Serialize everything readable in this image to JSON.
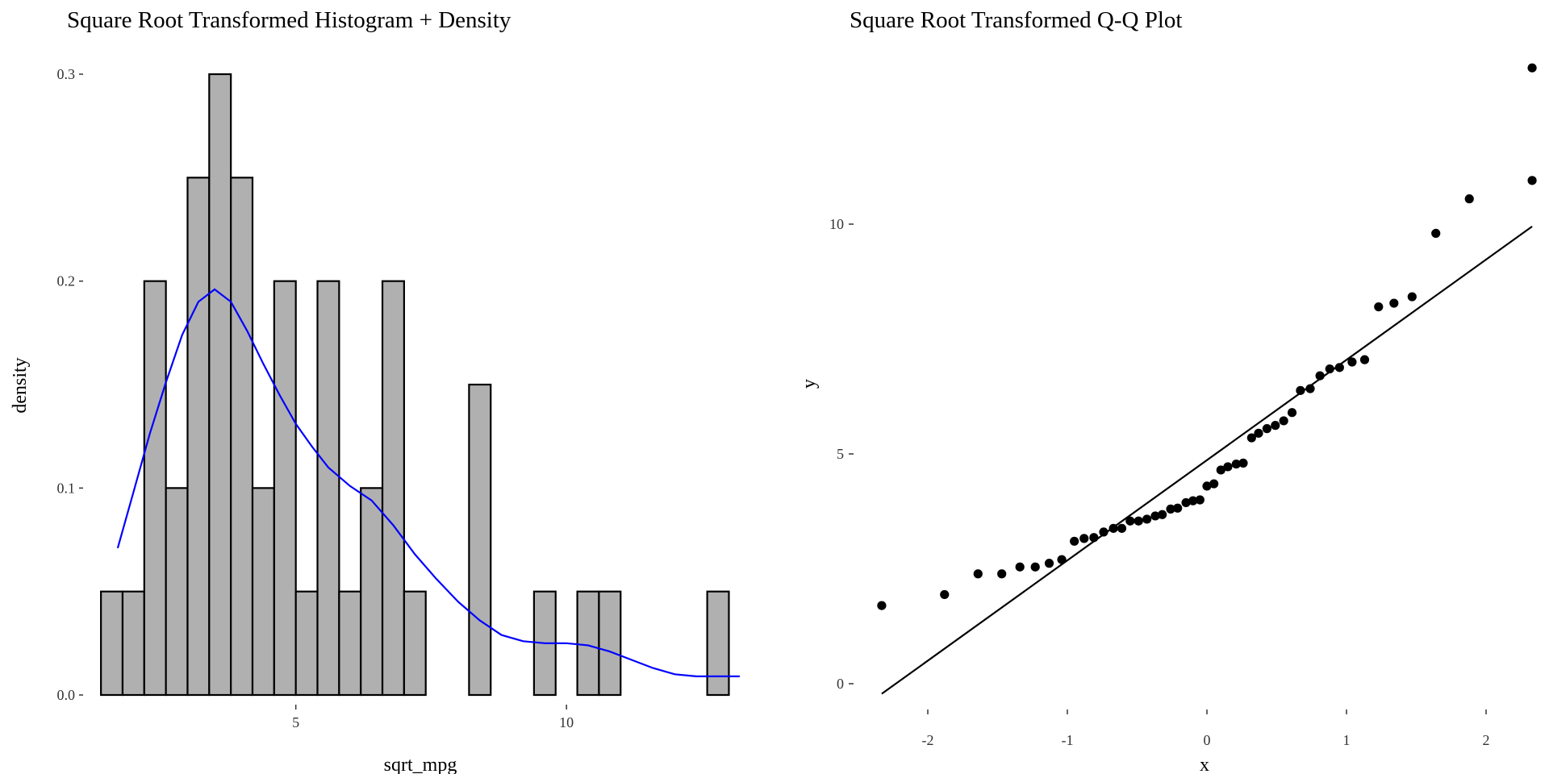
{
  "chart_data": [
    {
      "type": "histogram",
      "title": "Square Root Transformed Histogram + Density",
      "xlabel": "sqrt_mpg",
      "ylabel": "density",
      "xlim": [
        1.1,
        13.5
      ],
      "ylim": [
        0,
        0.3
      ],
      "x_ticks": [
        5,
        10
      ],
      "y_ticks": [
        0.0,
        0.1,
        0.2,
        0.3
      ],
      "x_tick_labels": [
        "5",
        "10"
      ],
      "y_tick_labels": [
        "0.0",
        "0.1",
        "0.2",
        "0.3"
      ],
      "bin_width": 0.4,
      "bins": [
        {
          "start": 1.4,
          "density": 0.05
        },
        {
          "start": 1.8,
          "density": 0.05
        },
        {
          "start": 2.2,
          "density": 0.2
        },
        {
          "start": 2.6,
          "density": 0.1
        },
        {
          "start": 3.0,
          "density": 0.25
        },
        {
          "start": 3.4,
          "density": 0.3
        },
        {
          "start": 3.8,
          "density": 0.25
        },
        {
          "start": 4.2,
          "density": 0.1
        },
        {
          "start": 4.6,
          "density": 0.2
        },
        {
          "start": 5.0,
          "density": 0.05
        },
        {
          "start": 5.4,
          "density": 0.2
        },
        {
          "start": 5.8,
          "density": 0.05
        },
        {
          "start": 6.2,
          "density": 0.1
        },
        {
          "start": 6.6,
          "density": 0.2
        },
        {
          "start": 7.0,
          "density": 0.05
        },
        {
          "start": 7.4,
          "density": 0.0
        },
        {
          "start": 7.8,
          "density": 0.0
        },
        {
          "start": 8.2,
          "density": 0.15
        },
        {
          "start": 8.6,
          "density": 0.0
        },
        {
          "start": 9.0,
          "density": 0.0
        },
        {
          "start": 9.4,
          "density": 0.05
        },
        {
          "start": 9.8,
          "density": 0.0
        },
        {
          "start": 10.2,
          "density": 0.05
        },
        {
          "start": 10.6,
          "density": 0.05
        },
        {
          "start": 11.0,
          "density": 0.0
        },
        {
          "start": 11.4,
          "density": 0.0
        },
        {
          "start": 11.8,
          "density": 0.0
        },
        {
          "start": 12.2,
          "density": 0.0
        },
        {
          "start": 12.6,
          "density": 0.05
        }
      ],
      "density_curve": {
        "color": "#0000ff",
        "x": [
          1.71,
          2.0,
          2.3,
          2.6,
          2.9,
          3.2,
          3.5,
          3.8,
          4.1,
          4.4,
          4.7,
          5.0,
          5.3,
          5.6,
          6.0,
          6.4,
          6.8,
          7.2,
          7.6,
          8.0,
          8.4,
          8.8,
          9.2,
          9.6,
          10.0,
          10.4,
          10.8,
          11.2,
          11.6,
          12.0,
          12.4,
          12.8,
          13.2
        ],
        "y": [
          0.071,
          0.098,
          0.126,
          0.151,
          0.174,
          0.19,
          0.196,
          0.19,
          0.176,
          0.16,
          0.145,
          0.131,
          0.12,
          0.11,
          0.101,
          0.094,
          0.082,
          0.068,
          0.056,
          0.045,
          0.036,
          0.029,
          0.026,
          0.025,
          0.025,
          0.024,
          0.021,
          0.017,
          0.013,
          0.01,
          0.009,
          0.009,
          0.009
        ]
      },
      "bar_fill": "#b0b0b0",
      "bar_stroke": "#000000"
    },
    {
      "type": "scatter",
      "title": "Square Root Transformed Q-Q Plot",
      "xlabel": "x",
      "ylabel": "y",
      "xlim": [
        -2.45,
        2.45
      ],
      "ylim": [
        -0.25,
        13.6
      ],
      "x_ticks": [
        -2,
        -1,
        0,
        1,
        2
      ],
      "y_ticks": [
        0,
        5,
        10
      ],
      "x_tick_labels": [
        "-2",
        "-1",
        "0",
        "1",
        "2"
      ],
      "y_tick_labels": [
        "0",
        "5",
        "10"
      ],
      "reference_line": {
        "x": [
          -2.33,
          2.33
        ],
        "y": [
          -0.22,
          9.95
        ]
      },
      "points": {
        "x": [
          -2.33,
          -1.88,
          -1.64,
          -1.47,
          -1.34,
          -1.23,
          -1.13,
          -1.04,
          -0.95,
          -0.88,
          -0.81,
          -0.74,
          -0.67,
          -0.61,
          -0.55,
          -0.49,
          -0.43,
          -0.37,
          -0.32,
          -0.26,
          -0.21,
          -0.15,
          -0.1,
          -0.05,
          0.0,
          0.05,
          0.1,
          0.15,
          0.21,
          0.26,
          0.32,
          0.37,
          0.43,
          0.49,
          0.55,
          0.61,
          0.67,
          0.74,
          0.81,
          0.88,
          0.95,
          1.04,
          1.13,
          1.23,
          1.34,
          1.47,
          1.64,
          1.88,
          2.33
        ],
        "y": [
          1.7,
          1.94,
          2.39,
          2.39,
          2.54,
          2.54,
          2.62,
          2.7,
          3.1,
          3.16,
          3.18,
          3.3,
          3.38,
          3.38,
          3.54,
          3.54,
          3.58,
          3.65,
          3.68,
          3.8,
          3.82,
          3.94,
          3.98,
          4.0,
          4.3,
          4.35,
          4.65,
          4.72,
          4.78,
          4.8,
          5.35,
          5.45,
          5.55,
          5.62,
          5.72,
          5.9,
          6.38,
          6.42,
          6.7,
          6.85,
          6.88,
          7.0,
          7.05,
          8.2,
          8.28,
          8.42,
          9.8,
          10.55,
          10.95
        ]
      },
      "extra_point": {
        "x": 2.33,
        "y": 13.4
      },
      "point_color": "#000000"
    }
  ]
}
